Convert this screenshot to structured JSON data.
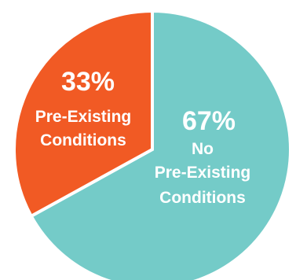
{
  "chart_data": {
    "type": "pie",
    "title": "",
    "legend": "none",
    "slices": [
      {
        "value": 67,
        "percent_label": "67%",
        "label_lines": [
          "No",
          "Pre-Existing",
          "Conditions"
        ],
        "color": "#74cbc8"
      },
      {
        "value": 33,
        "percent_label": "33%",
        "label_lines": [
          "Pre-Existing",
          "Conditions"
        ],
        "color": "#f15a24"
      }
    ]
  }
}
